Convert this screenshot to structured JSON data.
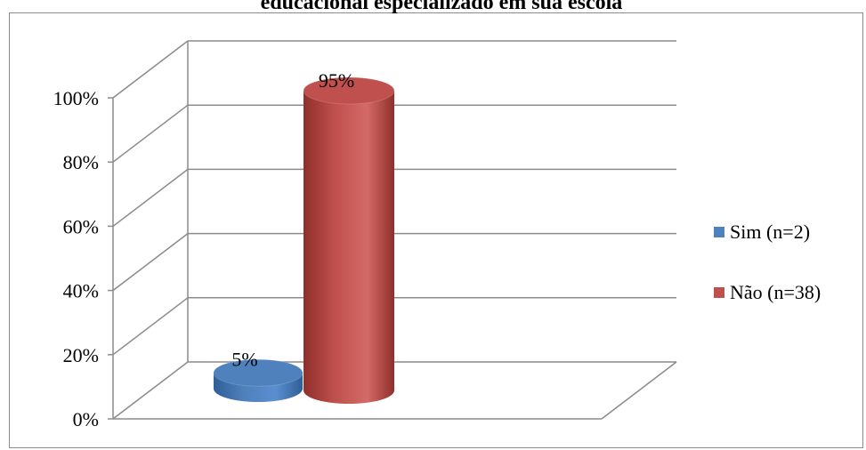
{
  "chart_data": {
    "type": "bar",
    "style": "3d-cylinder",
    "title": "educacional especializado em sua escola",
    "categories": [
      "Sim (n=2)",
      "Não (n=38)"
    ],
    "series": [
      {
        "name": "Sim (n=2)",
        "value": 5,
        "label": "5%",
        "color": "#4f81bd"
      },
      {
        "name": "Não (n=38)",
        "value": 95,
        "label": "95%",
        "color": "#c0504d"
      }
    ],
    "y_ticks": [
      "0%",
      "20%",
      "40%",
      "60%",
      "80%",
      "100%"
    ],
    "ylim": [
      0,
      100
    ],
    "grid": true,
    "legend_position": "right"
  }
}
